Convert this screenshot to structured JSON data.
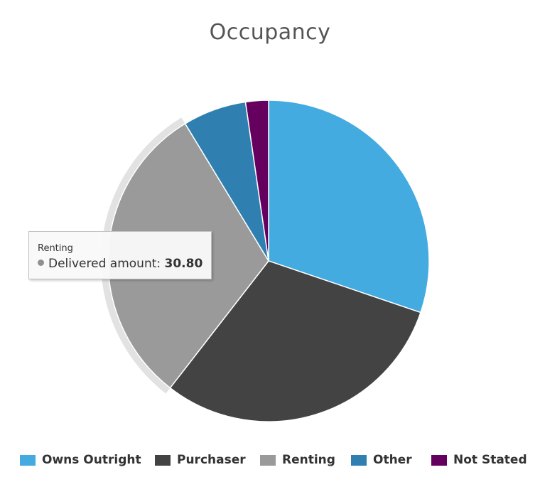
{
  "chart_data": {
    "type": "pie",
    "title": "Occupancy",
    "categories": [
      "Owns Outright",
      "Purchaser",
      "Renting",
      "Other",
      "Not Stated"
    ],
    "series": [
      {
        "values": [
          30.2,
          30.3,
          30.8,
          6.4,
          2.3
        ]
      }
    ],
    "colors": [
      "#43abe0",
      "#434343",
      "#9a9a9a",
      "#2f80b0",
      "#65005e"
    ],
    "hovered_category": "Renting",
    "legend": "bottom"
  },
  "tooltip": {
    "title": "Renting",
    "series_label": "Delivered amount: ",
    "value": "30.80",
    "dot_color": "#909090"
  },
  "legend": {
    "items": [
      {
        "label": "Owns Outright",
        "color": "#43abe0"
      },
      {
        "label": "Purchaser",
        "color": "#434343"
      },
      {
        "label": "Renting",
        "color": "#9a9a9a"
      },
      {
        "label": "Other",
        "color": "#2f80b0"
      },
      {
        "label": "Not Stated",
        "color": "#65005e"
      }
    ]
  }
}
